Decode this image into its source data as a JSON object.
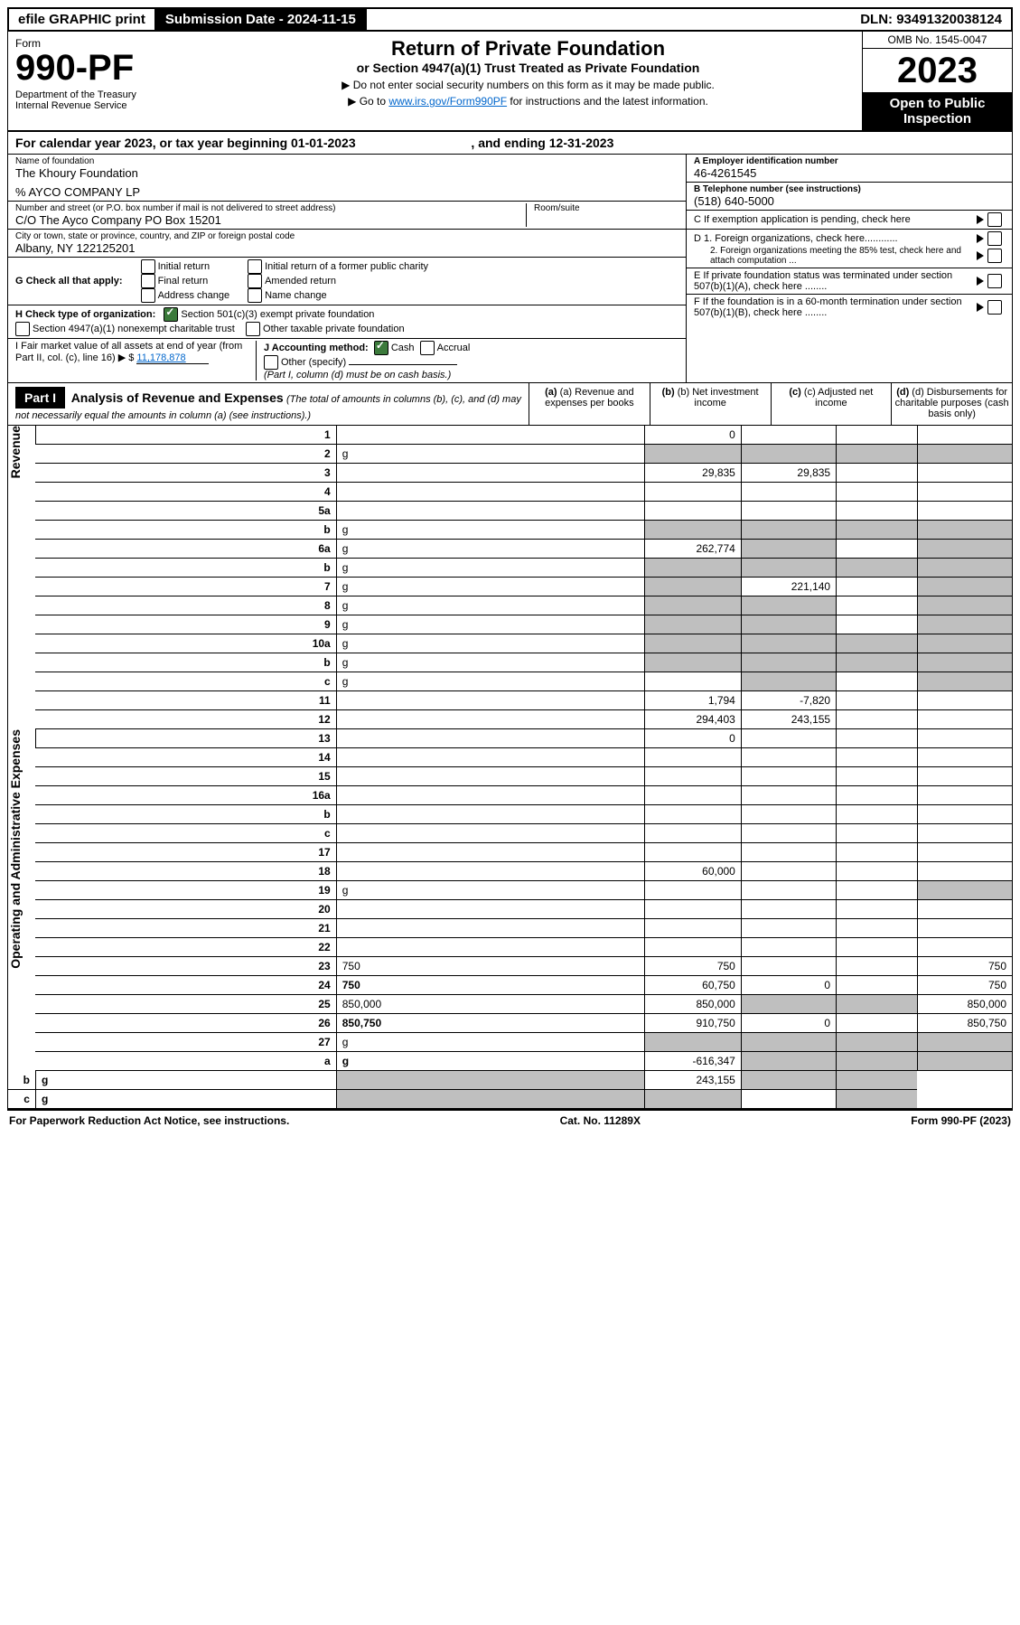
{
  "top": {
    "efile": "efile GRAPHIC print",
    "subdate_lbl": "Submission Date - ",
    "subdate": "2024-11-15",
    "dln_lbl": "DLN: ",
    "dln": "93491320038124"
  },
  "header": {
    "form_word": "Form",
    "form_no": "990-PF",
    "dept1": "Department of the Treasury",
    "dept2": "Internal Revenue Service",
    "title": "Return of Private Foundation",
    "subtitle": "or Section 4947(a)(1) Trust Treated as Private Foundation",
    "note1": "▶ Do not enter social security numbers on this form as it may be made public.",
    "note2_pre": "▶ Go to ",
    "note2_link": "www.irs.gov/Form990PF",
    "note2_post": " for instructions and the latest information.",
    "omb": "OMB No. 1545-0047",
    "year": "2023",
    "open": "Open to Public Inspection"
  },
  "cal": {
    "pre": "For calendar year 2023, or tax year beginning ",
    "begin": "01-01-2023",
    "mid": ", and ending ",
    "end": "12-31-2023"
  },
  "left": {
    "name_lbl": "Name of foundation",
    "name": "The Khoury Foundation",
    "pct": "% AYCO COMPANY LP",
    "addr_lbl": "Number and street (or P.O. box number if mail is not delivered to street address)",
    "addr": "C/O The Ayco Company PO Box 15201",
    "room_lbl": "Room/suite",
    "city_lbl": "City or town, state or province, country, and ZIP or foreign postal code",
    "city": "Albany, NY  122125201",
    "g_lbl": "G Check all that apply:",
    "g1": "Initial return",
    "g2": "Final return",
    "g3": "Address change",
    "g4": "Initial return of a former public charity",
    "g5": "Amended return",
    "g6": "Name change",
    "h_lbl": "H Check type of organization:",
    "h1": "Section 501(c)(3) exempt private foundation",
    "h2": "Section 4947(a)(1) nonexempt charitable trust",
    "h3": "Other taxable private foundation",
    "i_lbl": "I Fair market value of all assets at end of year (from Part II, col. (c), line 16) ▶ $",
    "i_val": "11,178,878",
    "j_lbl": "J Accounting method:",
    "j1": "Cash",
    "j2": "Accrual",
    "j3": "Other (specify)",
    "j_note": "(Part I, column (d) must be on cash basis.)"
  },
  "right": {
    "a_lbl": "A Employer identification number",
    "a": "46-4261545",
    "b_lbl": "B Telephone number (see instructions)",
    "b": "(518) 640-5000",
    "c": "C If exemption application is pending, check here",
    "d1": "D 1. Foreign organizations, check here............",
    "d2": "2. Foreign organizations meeting the 85% test, check here and attach computation ...",
    "e": "E If private foundation status was terminated under section 507(b)(1)(A), check here ........",
    "f": "F If the foundation is in a 60-month termination under section 507(b)(1)(B), check here ........"
  },
  "part1": {
    "label": "Part I",
    "title": "Analysis of Revenue and Expenses",
    "title_note": "(The total of amounts in columns (b), (c), and (d) may not necessarily equal the amounts in column (a) (see instructions).)",
    "col_a": "(a) Revenue and expenses per books",
    "col_b": "(b) Net investment income",
    "col_c": "(c) Adjusted net income",
    "col_d": "(d) Disbursements for charitable purposes (cash basis only)",
    "side_rev": "Revenue",
    "side_exp": "Operating and Administrative Expenses"
  },
  "rows": [
    {
      "n": "1",
      "d": "",
      "a": "0",
      "b": "",
      "c": ""
    },
    {
      "n": "2",
      "d": "g",
      "a": "g",
      "b": "g",
      "c": "g"
    },
    {
      "n": "3",
      "d": "",
      "a": "29,835",
      "b": "29,835",
      "c": ""
    },
    {
      "n": "4",
      "d": "",
      "a": "",
      "b": "",
      "c": ""
    },
    {
      "n": "5a",
      "d": "",
      "a": "",
      "b": "",
      "c": ""
    },
    {
      "n": "b",
      "d": "g",
      "a": "g",
      "b": "g",
      "c": "g"
    },
    {
      "n": "6a",
      "d": "g",
      "a": "262,774",
      "b": "g",
      "c": ""
    },
    {
      "n": "b",
      "d": "g",
      "a": "g",
      "b": "g",
      "c": "g"
    },
    {
      "n": "7",
      "d": "g",
      "a": "g",
      "b": "221,140",
      "c": ""
    },
    {
      "n": "8",
      "d": "g",
      "a": "g",
      "b": "g",
      "c": ""
    },
    {
      "n": "9",
      "d": "g",
      "a": "g",
      "b": "g",
      "c": ""
    },
    {
      "n": "10a",
      "d": "g",
      "a": "g",
      "b": "g",
      "c": "g"
    },
    {
      "n": "b",
      "d": "g",
      "a": "g",
      "b": "g",
      "c": "g"
    },
    {
      "n": "c",
      "d": "g",
      "a": "",
      "b": "g",
      "c": ""
    },
    {
      "n": "11",
      "d": "",
      "a": "1,794",
      "b": "-7,820",
      "c": ""
    },
    {
      "n": "12",
      "d": "",
      "a": "294,403",
      "b": "243,155",
      "c": "",
      "bold": true
    },
    {
      "n": "13",
      "d": "",
      "a": "0",
      "b": "",
      "c": ""
    },
    {
      "n": "14",
      "d": "",
      "a": "",
      "b": "",
      "c": ""
    },
    {
      "n": "15",
      "d": "",
      "a": "",
      "b": "",
      "c": ""
    },
    {
      "n": "16a",
      "d": "",
      "a": "",
      "b": "",
      "c": ""
    },
    {
      "n": "b",
      "d": "",
      "a": "",
      "b": "",
      "c": ""
    },
    {
      "n": "c",
      "d": "",
      "a": "",
      "b": "",
      "c": ""
    },
    {
      "n": "17",
      "d": "",
      "a": "",
      "b": "",
      "c": ""
    },
    {
      "n": "18",
      "d": "",
      "a": "60,000",
      "b": "",
      "c": ""
    },
    {
      "n": "19",
      "d": "g",
      "a": "",
      "b": "",
      "c": ""
    },
    {
      "n": "20",
      "d": "",
      "a": "",
      "b": "",
      "c": ""
    },
    {
      "n": "21",
      "d": "",
      "a": "",
      "b": "",
      "c": ""
    },
    {
      "n": "22",
      "d": "",
      "a": "",
      "b": "",
      "c": ""
    },
    {
      "n": "23",
      "d": "750",
      "a": "750",
      "b": "",
      "c": ""
    },
    {
      "n": "24",
      "d": "750",
      "a": "60,750",
      "b": "0",
      "c": "",
      "bold": true
    },
    {
      "n": "25",
      "d": "850,000",
      "a": "850,000",
      "b": "g",
      "c": "g"
    },
    {
      "n": "26",
      "d": "850,750",
      "a": "910,750",
      "b": "0",
      "c": "",
      "bold": true
    },
    {
      "n": "27",
      "d": "g",
      "a": "g",
      "b": "g",
      "c": "g"
    },
    {
      "n": "a",
      "d": "g",
      "a": "-616,347",
      "b": "g",
      "c": "g",
      "bold": true
    },
    {
      "n": "b",
      "d": "g",
      "a": "g",
      "b": "243,155",
      "c": "g",
      "bold": true
    },
    {
      "n": "c",
      "d": "g",
      "a": "g",
      "b": "g",
      "c": "",
      "bold": true
    }
  ],
  "footer": {
    "left": "For Paperwork Reduction Act Notice, see instructions.",
    "mid": "Cat. No. 11289X",
    "right": "Form 990-PF (2023)"
  }
}
